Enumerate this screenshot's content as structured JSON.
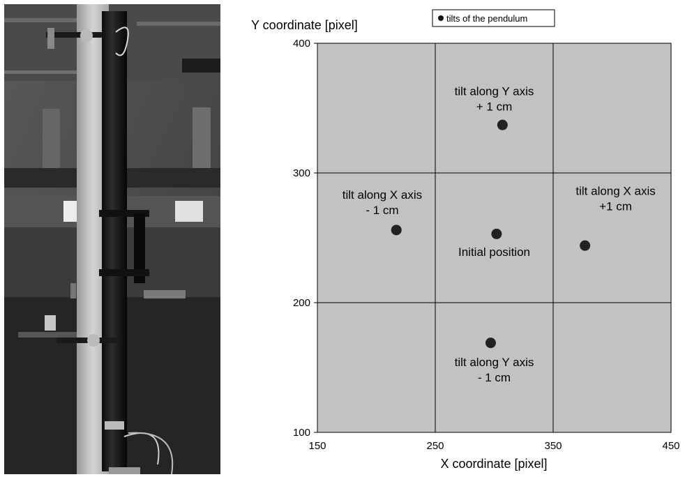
{
  "legend": {
    "label": "tilts of the pendulum"
  },
  "photo": {
    "description_icon": "pendulum-photo"
  },
  "chart_data": {
    "type": "scatter",
    "xlabel": "X coordinate [pixel]",
    "ylabel": "Y coordinate [pixel]",
    "xlim": [
      150,
      450
    ],
    "ylim": [
      100,
      400
    ],
    "xticks": [
      150,
      250,
      350,
      450
    ],
    "yticks": [
      100,
      200,
      300,
      400
    ],
    "grid": true,
    "legend_position": "top",
    "series": [
      {
        "name": "tilts of the pendulum",
        "color": "#222222",
        "points": [
          {
            "x": 307,
            "y": 337
          },
          {
            "x": 217,
            "y": 256
          },
          {
            "x": 302,
            "y": 253
          },
          {
            "x": 377,
            "y": 244
          },
          {
            "x": 297,
            "y": 169
          }
        ]
      }
    ],
    "annotations": [
      {
        "lines": [
          "tilt along Y axis",
          "+ 1 cm"
        ],
        "x": 300,
        "y": 360
      },
      {
        "lines": [
          "tilt along X axis",
          "- 1 cm"
        ],
        "x": 205,
        "y": 280
      },
      {
        "lines": [
          "Initial position"
        ],
        "x": 300,
        "y": 236
      },
      {
        "lines": [
          "tilt along X axis",
          "+1 cm"
        ],
        "x": 403,
        "y": 283
      },
      {
        "lines": [
          "tilt along Y axis",
          "- 1 cm"
        ],
        "x": 300,
        "y": 151
      }
    ]
  }
}
